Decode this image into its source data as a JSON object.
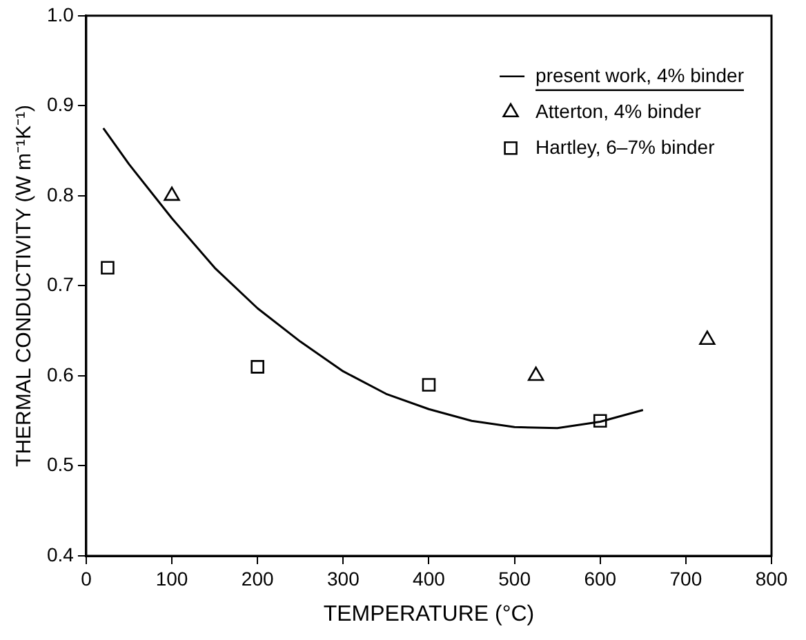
{
  "chart_data": {
    "type": "scatter",
    "xlabel": "TEMPERATURE (°C)",
    "ylabel": "THERMAL CONDUCTIVITY (W m⁻¹K⁻¹)",
    "xlim": [
      0,
      800
    ],
    "xticks": [
      0,
      100,
      200,
      300,
      400,
      500,
      600,
      700,
      800
    ],
    "ylim": [
      0.4,
      1.0
    ],
    "yticks": [
      0.4,
      0.5,
      0.6,
      0.7,
      0.8,
      0.9,
      {
        "value": 1,
        "label": "1.0"
      }
    ],
    "grid": false,
    "legend": "top right",
    "series": [
      {
        "name": "present work, 4% binder",
        "type": "line",
        "color": "#000000",
        "marker": "none",
        "line_style": "solid",
        "x": [
          20,
          50,
          100,
          150,
          200,
          250,
          300,
          350,
          400,
          450,
          500,
          550,
          600,
          650
        ],
        "values": [
          0.875,
          0.835,
          0.775,
          0.72,
          0.675,
          0.638,
          0.605,
          0.58,
          0.563,
          0.55,
          0.543,
          0.542,
          0.549,
          0.562
        ]
      },
      {
        "name": "Atterton, 4% binder",
        "type": "scatter",
        "color": "#000000",
        "marker": "triangle",
        "x": [
          100,
          525,
          725
        ],
        "values": [
          0.8,
          0.6,
          0.64
        ]
      },
      {
        "name": "Hartley, 6–7% binder",
        "type": "scatter",
        "color": "#000000",
        "marker": "square",
        "x": [
          25,
          200,
          400,
          600
        ],
        "values": [
          0.72,
          0.61,
          0.59,
          0.55
        ]
      }
    ]
  }
}
